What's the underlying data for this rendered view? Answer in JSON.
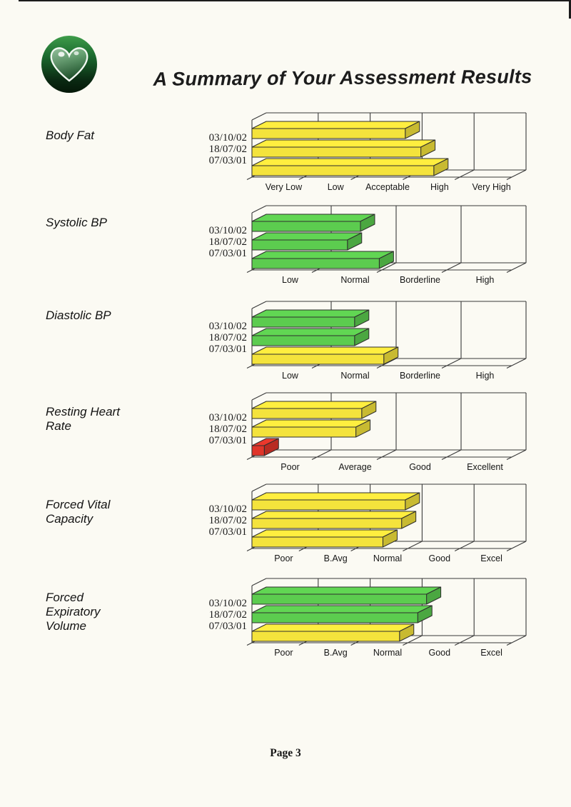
{
  "page": {
    "title": "A Summary of Your Assessment Results",
    "footer": "Page 3"
  },
  "colors": {
    "paper": "#FBFAF3",
    "bar_yellow": "#F4E33C",
    "bar_green": "#5CCC4F",
    "bar_red": "#E0352A",
    "outline": "#2E2E2E",
    "frame": "#3A3A3A"
  },
  "chart_data": [
    {
      "type": "bar",
      "orientation": "horizontal",
      "metric": "Body Fat",
      "metric_lines": [
        "Body Fat"
      ],
      "categories": [
        "Very Low",
        "Low",
        "Acceptable",
        "High",
        "Very High"
      ],
      "xlim": [
        0,
        5
      ],
      "rows": [
        {
          "date": "03/10/02",
          "value": 2.95,
          "color": "bar_yellow"
        },
        {
          "date": "18/07/02",
          "value": 3.25,
          "color": "bar_yellow"
        },
        {
          "date": "07/03/01",
          "value": 3.5,
          "color": "bar_yellow"
        }
      ]
    },
    {
      "type": "bar",
      "orientation": "horizontal",
      "metric": "Systolic BP",
      "metric_lines": [
        "Systolic BP"
      ],
      "categories": [
        "Low",
        "Normal",
        "Borderline",
        "High"
      ],
      "xlim": [
        0,
        4
      ],
      "rows": [
        {
          "date": "03/10/02",
          "value": 1.67,
          "color": "bar_green"
        },
        {
          "date": "18/07/02",
          "value": 1.47,
          "color": "bar_green"
        },
        {
          "date": "07/03/01",
          "value": 1.96,
          "color": "bar_green"
        }
      ]
    },
    {
      "type": "bar",
      "orientation": "horizontal",
      "metric": "Diastolic BP",
      "metric_lines": [
        "Diastolic BP"
      ],
      "categories": [
        "Low",
        "Normal",
        "Borderline",
        "High"
      ],
      "xlim": [
        0,
        4
      ],
      "rows": [
        {
          "date": "03/10/02",
          "value": 1.58,
          "color": "bar_green"
        },
        {
          "date": "18/07/02",
          "value": 1.58,
          "color": "bar_green"
        },
        {
          "date": "07/03/01",
          "value": 2.03,
          "color": "bar_yellow"
        }
      ]
    },
    {
      "type": "bar",
      "orientation": "horizontal",
      "metric": "Resting Heart Rate",
      "metric_lines": [
        "Resting Heart",
        "Rate"
      ],
      "categories": [
        "Poor",
        "Average",
        "Good",
        "Excellent"
      ],
      "xlim": [
        0,
        4
      ],
      "rows": [
        {
          "date": "03/10/02",
          "value": 1.69,
          "color": "bar_yellow"
        },
        {
          "date": "18/07/02",
          "value": 1.6,
          "color": "bar_yellow"
        },
        {
          "date": "07/03/01",
          "value": 0.19,
          "color": "bar_red"
        }
      ]
    },
    {
      "type": "bar",
      "orientation": "horizontal",
      "metric": "Forced Vital Capacity",
      "metric_lines": [
        "Forced Vital",
        "Capacity"
      ],
      "categories": [
        "Poor",
        "B.Avg",
        "Normal",
        "Good",
        "Excel"
      ],
      "xlim": [
        0,
        5
      ],
      "rows": [
        {
          "date": "03/10/02",
          "value": 2.95,
          "color": "bar_yellow"
        },
        {
          "date": "18/07/02",
          "value": 2.88,
          "color": "bar_yellow"
        },
        {
          "date": "07/03/01",
          "value": 2.52,
          "color": "bar_yellow"
        }
      ]
    },
    {
      "type": "bar",
      "orientation": "horizontal",
      "metric": "Forced Expiratory Volume",
      "metric_lines": [
        "Forced",
        "Expiratory",
        "Volume"
      ],
      "categories": [
        "Poor",
        "B.Avg",
        "Normal",
        "Good",
        "Excel"
      ],
      "xlim": [
        0,
        5
      ],
      "rows": [
        {
          "date": "03/10/02",
          "value": 3.36,
          "color": "bar_green"
        },
        {
          "date": "18/07/02",
          "value": 3.19,
          "color": "bar_green"
        },
        {
          "date": "07/03/01",
          "value": 2.84,
          "color": "bar_yellow"
        }
      ]
    }
  ]
}
